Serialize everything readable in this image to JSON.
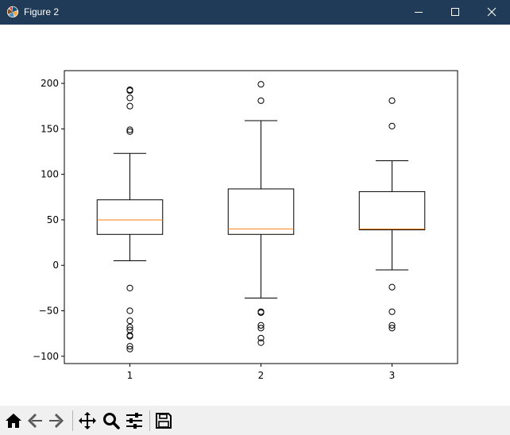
{
  "window": {
    "title": "Figure 2",
    "titlebar_color": "#1f3b57"
  },
  "toolbar": {
    "items": [
      {
        "name": "home-button",
        "icon": "home-icon"
      },
      {
        "name": "back-button",
        "icon": "back-arrow-icon"
      },
      {
        "name": "forward-button",
        "icon": "forward-arrow-icon"
      },
      {
        "name": "pan-button",
        "icon": "move-icon"
      },
      {
        "name": "zoom-button",
        "icon": "magnifier-icon"
      },
      {
        "name": "configure-subplots-button",
        "icon": "sliders-icon"
      },
      {
        "name": "save-button",
        "icon": "floppy-disk-icon"
      }
    ]
  },
  "chart_data": {
    "type": "boxplot",
    "title": "",
    "xlabel": "",
    "ylabel": "",
    "ylim": [
      -108,
      214
    ],
    "yticks": [
      -100,
      -50,
      0,
      50,
      100,
      150,
      200
    ],
    "ytick_labels": [
      "−100",
      "−50",
      "0",
      "50",
      "100",
      "150",
      "200"
    ],
    "xlim": [
      0.5,
      3.5
    ],
    "categories": [
      "1",
      "2",
      "3"
    ],
    "grid": false,
    "median_color": "#ff7f0e",
    "boxes": [
      {
        "label": "1",
        "position": 1,
        "whisker_low": 5,
        "q1": 34,
        "median": 50,
        "q3": 72,
        "whisker_high": 123,
        "fliers": [
          193,
          192,
          184,
          175,
          149,
          147,
          -25,
          -50,
          -61,
          -68,
          -71,
          -77,
          -78,
          -89,
          -92
        ]
      },
      {
        "label": "2",
        "position": 2,
        "whisker_low": -36,
        "q1": 34,
        "median": 40,
        "q3": 84,
        "whisker_high": 159,
        "fliers": [
          199,
          181,
          -51,
          -52,
          -66,
          -69,
          -80,
          -85
        ]
      },
      {
        "label": "3",
        "position": 3,
        "whisker_low": -5,
        "q1": 39,
        "median": 40,
        "q3": 81,
        "whisker_high": 115,
        "fliers": [
          181,
          153,
          -24,
          -51,
          -66,
          -69
        ]
      }
    ]
  }
}
